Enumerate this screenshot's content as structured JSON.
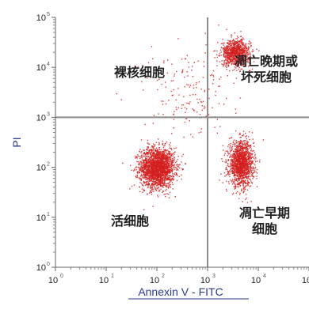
{
  "chart_data": {
    "type": "scatter",
    "title": "",
    "xlabel": "Annexin V - FITC",
    "ylabel": "PI",
    "x_scale": "log",
    "y_scale": "log",
    "xlim": [
      1,
      100000
    ],
    "ylim": [
      1,
      100000
    ],
    "x_tick_labels": [
      "10",
      "10",
      "10",
      "10",
      "10",
      "10"
    ],
    "x_tick_exponents": [
      "0",
      "1",
      "2",
      "3",
      "4",
      "5"
    ],
    "y_tick_labels": [
      "10",
      "10",
      "10",
      "10",
      "10",
      "10"
    ],
    "y_tick_exponents": [
      "0",
      "1",
      "2",
      "3",
      "4",
      "5"
    ],
    "gates": {
      "x": 1000,
      "y": 1000
    },
    "grid": false,
    "point_color": "#d42020",
    "gate_color": "#8c8c8c",
    "quadrants": [
      {
        "position": "upper-left",
        "lines": [
          "裸核细胞"
        ]
      },
      {
        "position": "upper-right",
        "lines": [
          "凋亡晚期或",
          "坏死细胞"
        ]
      },
      {
        "position": "lower-left",
        "lines": [
          "活细胞"
        ]
      },
      {
        "position": "lower-right",
        "lines": [
          "凋亡早期",
          "细胞"
        ]
      }
    ],
    "populations": [
      {
        "center": [
          100,
          100
        ],
        "spread_log": [
          0.17,
          0.2
        ],
        "count": 2200
      },
      {
        "center": [
          4500,
          120
        ],
        "spread_log": [
          0.12,
          0.22
        ],
        "count": 1500
      },
      {
        "center": [
          3500,
          20000
        ],
        "spread_log": [
          0.14,
          0.13
        ],
        "count": 900
      },
      {
        "center": [
          400,
          3000
        ],
        "spread_log": [
          0.45,
          0.5
        ],
        "count": 180
      }
    ]
  }
}
